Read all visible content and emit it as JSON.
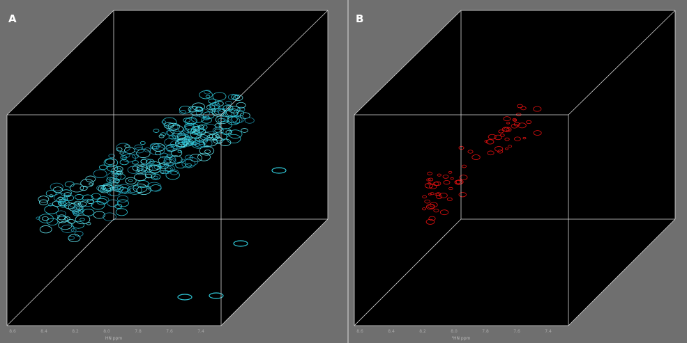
{
  "panels": [
    {
      "label": "A",
      "x_axis_label": "HN ppm",
      "x_ticks": [
        "8.6",
        "8.4",
        "8.2",
        "8.0",
        "7.8",
        "7.6",
        "7.4"
      ]
    },
    {
      "label": "B",
      "x_axis_label": "¹HN ppm",
      "x_ticks": [
        "8.6",
        "8.4",
        "8.2",
        "8.0",
        "7.8",
        "7.6",
        "7.4"
      ]
    }
  ]
}
